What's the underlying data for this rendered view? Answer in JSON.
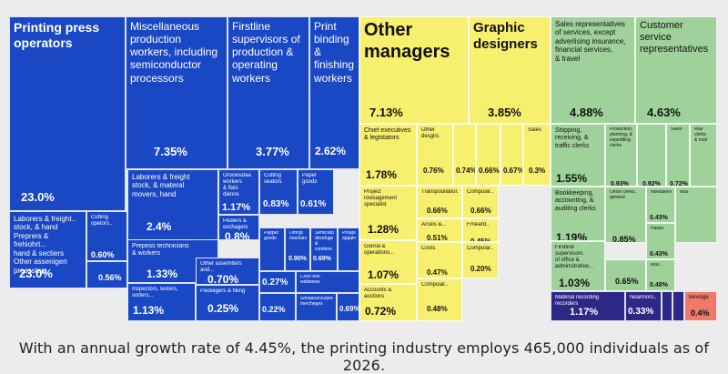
{
  "colors": {
    "production": "#1a47c4",
    "management": "#f7ef6e",
    "sales": "#9fd29a",
    "admin": "#2d2787",
    "other": "#ef7a6a"
  },
  "chart_data": {
    "type": "treemap",
    "title": "",
    "caption": "With an annual growth rate of 4.45%, the printing industry employs 465,000 individuals as of 2026.",
    "groups": [
      {
        "color": "production",
        "items": [
          {
            "label": "Printing press operators",
            "value": "23.0%"
          },
          {
            "label": "Miscellaneous production workers, including semiconductor processors",
            "value": "7.35%"
          },
          {
            "label": "Firstline supervisors of production & operating workers",
            "value": "3.77%"
          },
          {
            "label": "Print binding & finishing workers",
            "value": "2.62%"
          },
          {
            "label": "Laborers & freight stock, & material movers, hand",
            "value": "2.4%"
          },
          {
            "label": "Crossstable workers & flats dienns",
            "value": "1.17%"
          },
          {
            "label": "Cutting seators",
            "value": "0.83%"
          },
          {
            "label": "Paper goods",
            "value": "0.61%"
          },
          {
            "label": "Pediers & exchagers",
            "value": "0.8%"
          },
          {
            "label": "Prepess technicians & workers",
            "value": "1.33%"
          },
          {
            "label": "Other assemtlers and...",
            "value": "0.70%"
          },
          {
            "label": "Papper goods",
            "value": ""
          },
          {
            "label": "Omngi machanap",
            "value": "0.90%"
          },
          {
            "label": "Semicatdoes devsfuge & contions",
            "value": "0.69%"
          },
          {
            "label": "Proupir apgalm",
            "value": ""
          },
          {
            "label": "",
            "value": "0.27%"
          },
          {
            "label": "Coon iron waltwews",
            "value": ""
          },
          {
            "label": "Inspectors, testers, sorters...",
            "value": "1.13%"
          },
          {
            "label": "Packegers & filling",
            "value": "0.25%"
          },
          {
            "label": "",
            "value": "0.22%"
          },
          {
            "label": "Shoaaracourplnat mercheges",
            "value": ""
          },
          {
            "label": "",
            "value": "0.69%"
          },
          {
            "label": "Laborers & freight.. stock, & hand Preprers & frehiohrt... hand & sectiers Other assenigen procssters",
            "value": "23.0%"
          },
          {
            "label": "Cutting opetors..",
            "value": "0.60%"
          },
          {
            "label": "",
            "value": "0.56%"
          }
        ]
      },
      {
        "color": "management",
        "items": [
          {
            "label": "Other managers",
            "value": "7.13%"
          },
          {
            "label": "Graphic designers",
            "value": "3.85%"
          },
          {
            "label": "Chief executives & legistators",
            "value": "1.78%"
          },
          {
            "label": "Other desgirs",
            "value": "0.76%"
          },
          {
            "label": "",
            "value": "0.74%"
          },
          {
            "label": "",
            "value": "0.66%"
          },
          {
            "label": "",
            "value": "0.67%"
          },
          {
            "label": "Sales",
            "value": "0.3%"
          },
          {
            "label": "Project rowsagement specialist",
            "value": "1.28%"
          },
          {
            "label": "Transpoullatior...",
            "value": "0.66%"
          },
          {
            "label": "Compular..",
            "value": "0.66%"
          },
          {
            "label": "Arceis &...",
            "value": "0.51%"
          },
          {
            "label": "Frneard..",
            "value": "0.45%"
          },
          {
            "label": "Gonral & operations...",
            "value": "1.07%"
          },
          {
            "label": "Costs",
            "value": "0.47%"
          },
          {
            "label": "Compular..",
            "value": "0.20%"
          },
          {
            "label": "Accounts & auctions",
            "value": "0.72%"
          },
          {
            "label": "Compular..",
            "value": "0.48%"
          }
        ]
      },
      {
        "color": "sales",
        "items": [
          {
            "label": "Sales representatives of services, except advertising insurance, financial services, & travel",
            "value": "4.88%"
          },
          {
            "label": "Customer service representatives",
            "value": "4.63%"
          },
          {
            "label": "Shipping, receiving, & traffic clerks",
            "value": "1.55%"
          },
          {
            "label": "Production, planning, & expediting clerks",
            "value": "0.93%"
          },
          {
            "label": "",
            "value": "0.92%"
          },
          {
            "label": "Sales",
            "value": "0.72%"
          },
          {
            "label": "Mail clerks & mail",
            "value": ""
          },
          {
            "label": "Bookkeeping, accounting, & auditing clerks",
            "value": "1.19%"
          },
          {
            "label": "Office clerks, general",
            "value": "0.85%"
          },
          {
            "label": "Nowsblened",
            "value": "0.43%"
          },
          {
            "label": "Mas",
            "value": ""
          },
          {
            "label": "Hatsip",
            "value": "0.43%"
          },
          {
            "label": "Firstline supervisors of office & adminsitrative...",
            "value": "1.03%"
          },
          {
            "label": "",
            "value": "0.65%"
          },
          {
            "label": "Mas...",
            "value": "0.48%"
          }
        ]
      },
      {
        "color": "admin",
        "items": [
          {
            "label": "Material recording recorders",
            "value": "1.17%"
          },
          {
            "label": "Nearmors..",
            "value": "0.33%"
          }
        ]
      },
      {
        "color": "other",
        "items": [
          {
            "label": "Bevinge",
            "value": "0.4%"
          }
        ]
      }
    ]
  }
}
